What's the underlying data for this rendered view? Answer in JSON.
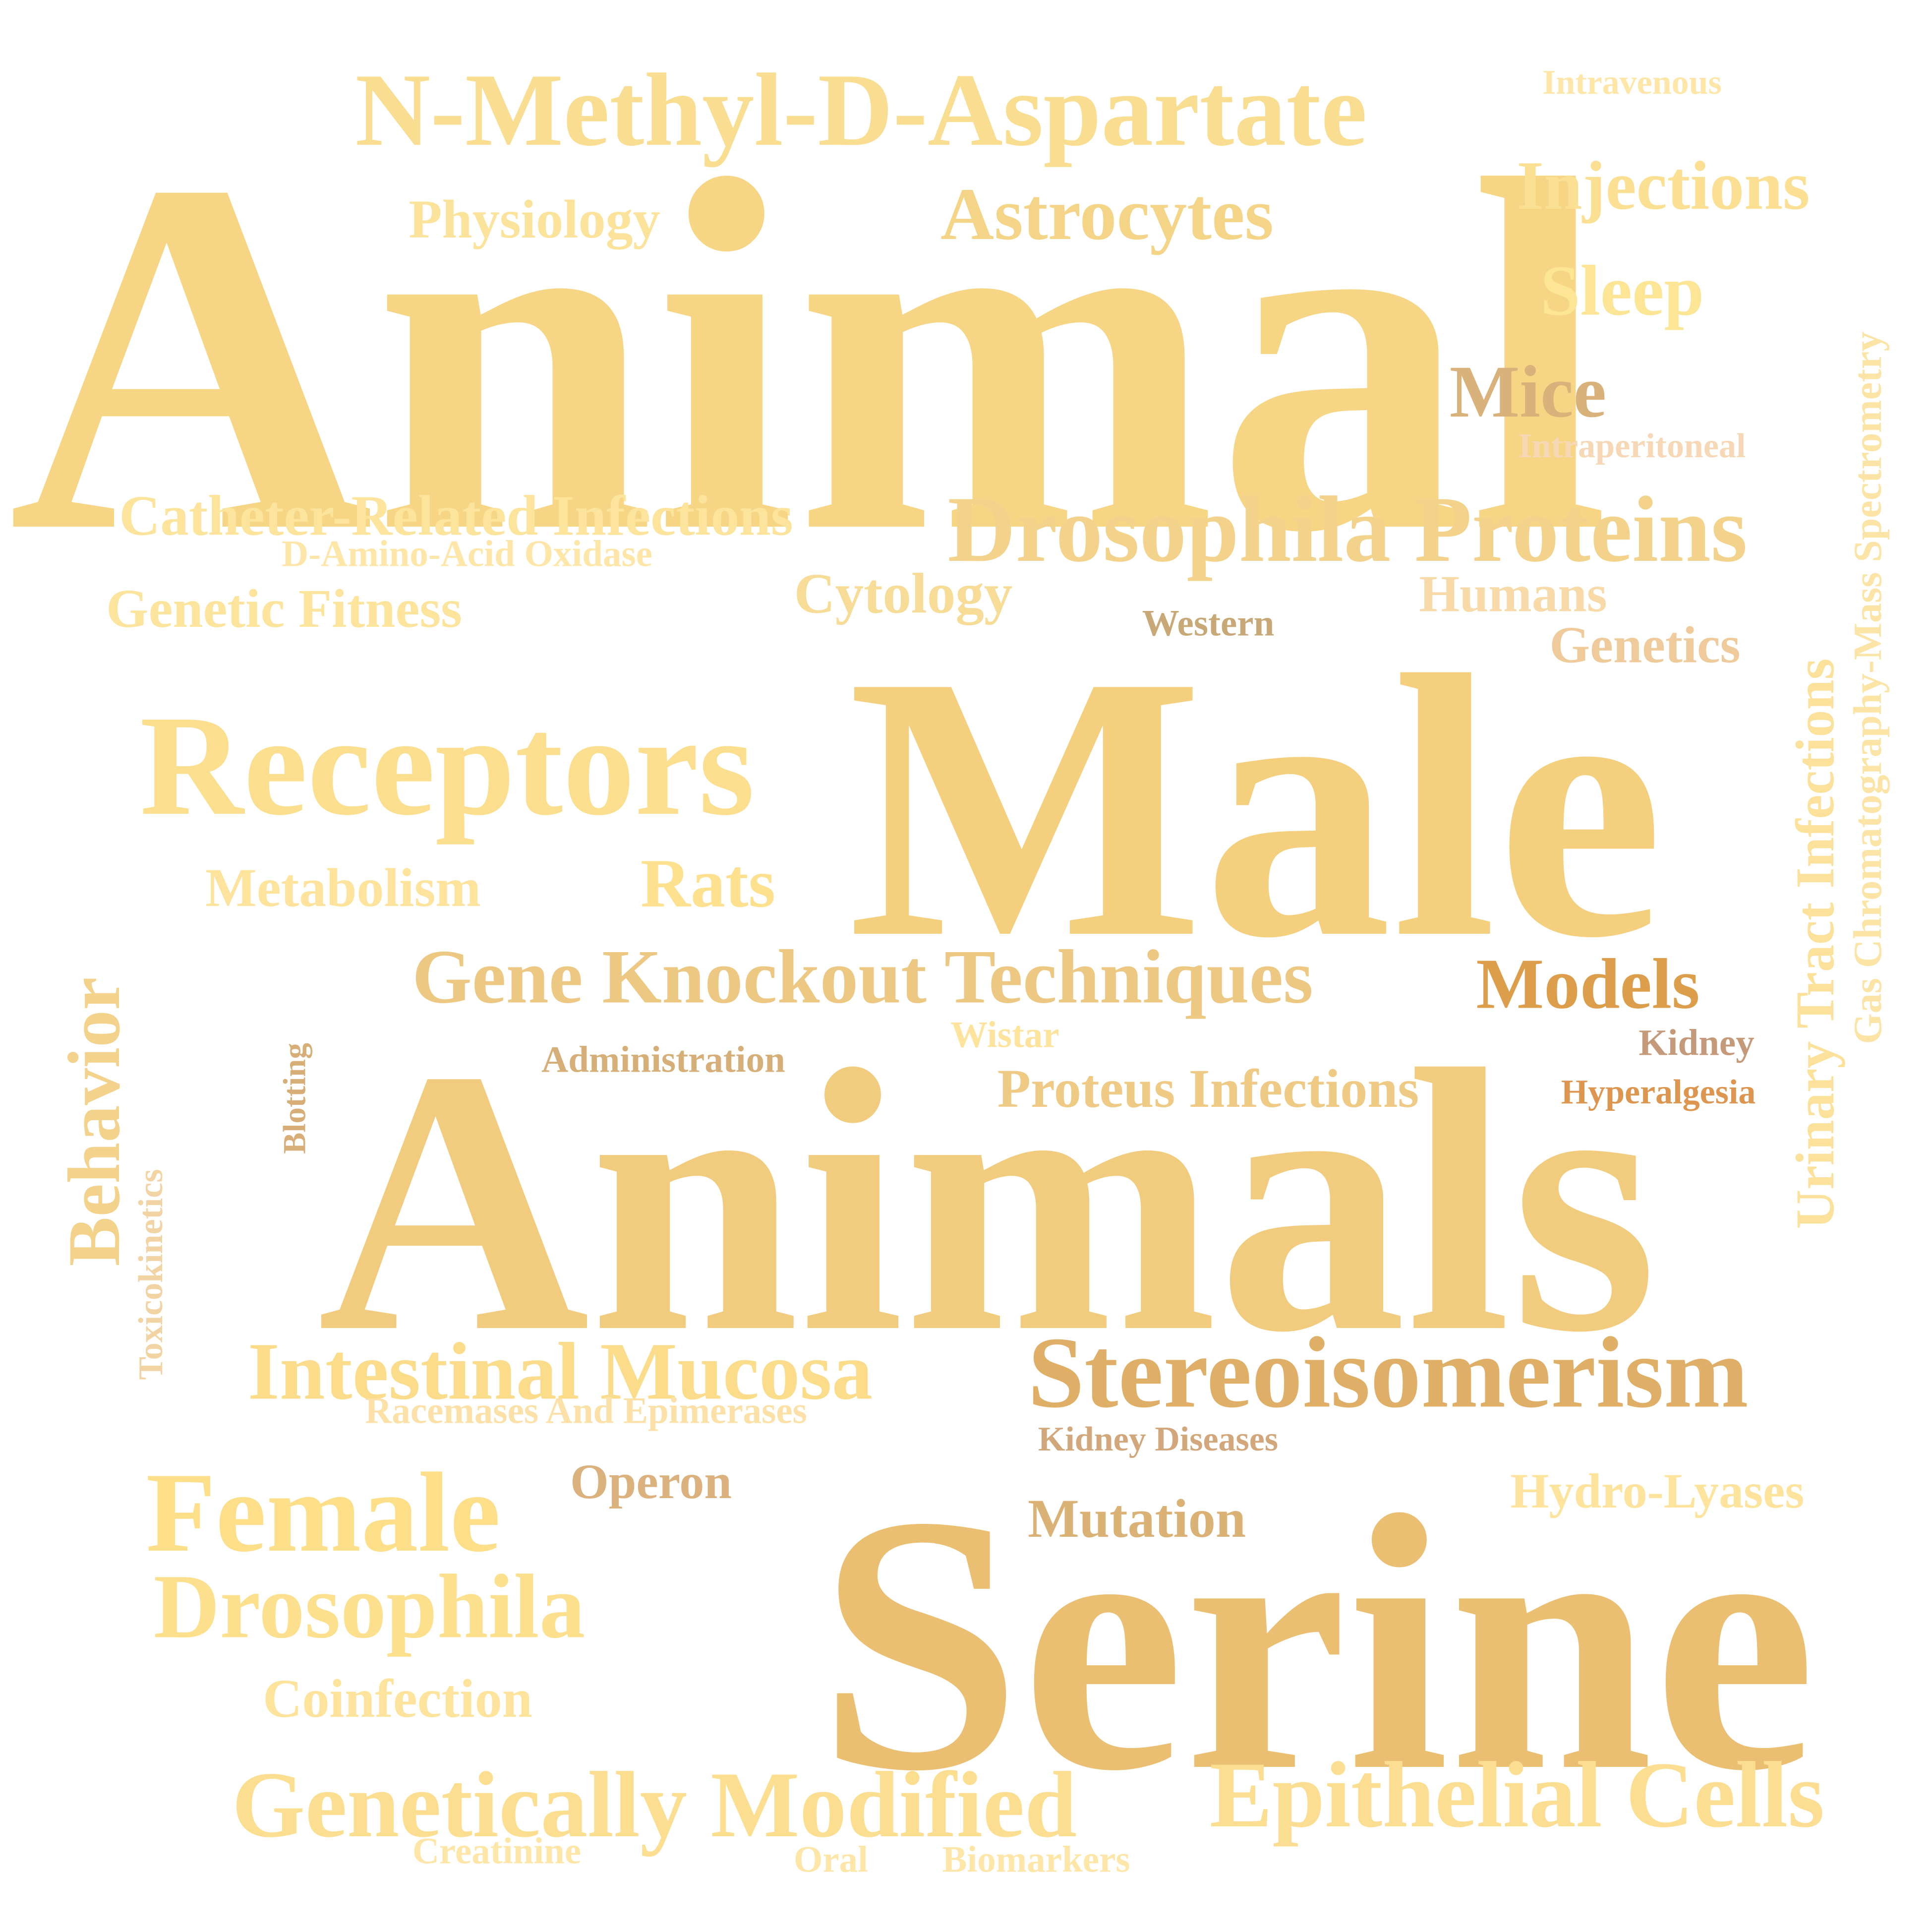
{
  "word_cloud": {
    "background": "#ffffff",
    "words": {
      "animal": {
        "text": "Animal",
        "color": "#f6d584"
      },
      "male": {
        "text": "Male",
        "color": "#f4cf7e"
      },
      "animals": {
        "text": "Animals",
        "color": "#f1cc7f"
      },
      "serine": {
        "text": "Serine",
        "color": "#ebbf72"
      },
      "n_methyl_d_aspartate": {
        "text": "N-Methyl-D-Aspartate",
        "color": "#f9dd91"
      },
      "receptors": {
        "text": "Receptors",
        "color": "#fbdf8e"
      },
      "drosophila_proteins": {
        "text": "Drosophila Proteins",
        "color": "#f3d38c"
      },
      "stereoisomerism": {
        "text": "Stereoisomerism",
        "color": "#dfaf68"
      },
      "female": {
        "text": "Female",
        "color": "#fddf8a"
      },
      "intestinal_mucosa": {
        "text": "Intestinal Mucosa",
        "color": "#fbdc8a"
      },
      "genetically_modified": {
        "text": "Genetically Modified",
        "color": "#fbde8f"
      },
      "epithelial_cells": {
        "text": "Epithelial Cells",
        "color": "#fbde92"
      },
      "drosophila": {
        "text": "Drosophila",
        "color": "#fce08e"
      },
      "gene_knockout_techniques": {
        "text": "Gene Knockout Techniques",
        "color": "#ecc883"
      },
      "astrocytes": {
        "text": "Astrocytes",
        "color": "#f4d486"
      },
      "injections": {
        "text": "Injections",
        "color": "#fbe093"
      },
      "sleep": {
        "text": "Sleep",
        "color": "#fde596"
      },
      "mice": {
        "text": "Mice",
        "color": "#d8b17b"
      },
      "models": {
        "text": "Models",
        "color": "#dd9e4c"
      },
      "rats": {
        "text": "Rats",
        "color": "#fde18f"
      },
      "behavior": {
        "text": "Behavior",
        "color": "#f3d28c"
      },
      "urinary_tract_infections": {
        "text": "Urinary Tract Infections",
        "color": "#fbe19a"
      },
      "gas_chromatography_mass_spectrometry": {
        "text": "Gas Chromatography-Mass Spectrometry",
        "color": "#fbe4a6"
      },
      "physiology": {
        "text": "Physiology",
        "color": "#fce39b"
      },
      "catheter_related_infections": {
        "text": "Catheter-Related Infections",
        "color": "#fde49c"
      },
      "genetic_fitness": {
        "text": "Genetic Fitness",
        "color": "#fde49c"
      },
      "cytology": {
        "text": "Cytology",
        "color": "#f7dc98"
      },
      "humans": {
        "text": "Humans",
        "color": "#f8d9a8"
      },
      "genetics": {
        "text": "Genetics",
        "color": "#efcb9b"
      },
      "metabolism": {
        "text": "Metabolism",
        "color": "#fde39b"
      },
      "proteus_infections": {
        "text": "Proteus Infections",
        "color": "#efca85"
      },
      "coinfection": {
        "text": "Coinfection",
        "color": "#fde39b"
      },
      "mutation": {
        "text": "Mutation",
        "color": "#dbb276"
      },
      "operon": {
        "text": "Operon",
        "color": "#dbb27e"
      },
      "hydro_lyases": {
        "text": "Hydro-Lyases",
        "color": "#fde39b"
      },
      "intravenous": {
        "text": "Intravenous",
        "color": "#fde6a8"
      },
      "intraperitoneal": {
        "text": "Intraperitoneal",
        "color": "#f6d8b6"
      },
      "d_amino_acid_oxidase": {
        "text": "D-Amino-Acid Oxidase",
        "color": "#fde6a8"
      },
      "western": {
        "text": "Western",
        "color": "#c9a878"
      },
      "wistar": {
        "text": "Wistar",
        "color": "#fde39b"
      },
      "administration": {
        "text": "Administration",
        "color": "#d6ae78"
      },
      "kidney": {
        "text": "Kidney",
        "color": "#c59a7b"
      },
      "hyperalgesia": {
        "text": "Hyperalgesia",
        "color": "#dd9650"
      },
      "blotting": {
        "text": "Blotting",
        "color": "#d8ae78"
      },
      "toxicokinetics": {
        "text": "Toxicokinetics",
        "color": "#f2d4a4"
      },
      "racemases_and_epimerases": {
        "text": "Racemases And Epimerases",
        "color": "#fbe1a8"
      },
      "kidney_diseases": {
        "text": "Kidney Diseases",
        "color": "#d1a77b"
      },
      "creatinine": {
        "text": "Creatinine",
        "color": "#fde6a8"
      },
      "oral": {
        "text": "Oral",
        "color": "#fde6a8"
      },
      "biomarkers": {
        "text": "Biomarkers",
        "color": "#fde6a8"
      }
    }
  }
}
